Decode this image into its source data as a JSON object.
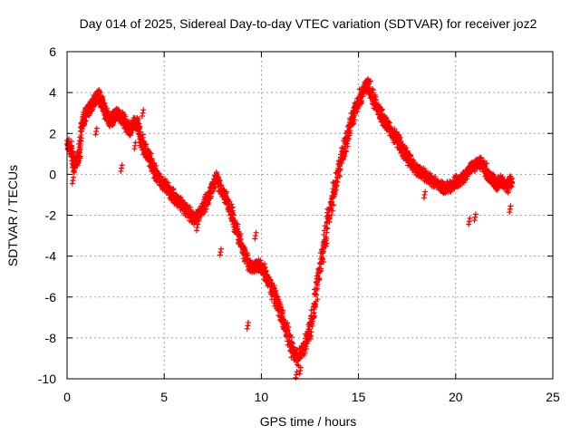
{
  "chart_data": {
    "type": "scatter",
    "title": "Day 014 of 2025, Sidereal Day-to-day VTEC variation (SDTVAR) for receiver joz2",
    "xlabel": "GPS time / hours",
    "ylabel": "SDTVAR / TECUs",
    "xlim": [
      0,
      25
    ],
    "ylim": [
      -10,
      6
    ],
    "xticks": [
      0,
      5,
      10,
      15,
      20,
      25
    ],
    "yticks": [
      -10,
      -8,
      -6,
      -4,
      -2,
      0,
      2,
      4,
      6
    ],
    "xtick_labels": [
      "0",
      "5",
      "10",
      "15",
      "20",
      "25"
    ],
    "ytick_labels": [
      "-10",
      "-8",
      "-6",
      "-4",
      "-2",
      "0",
      "2",
      "4",
      "6"
    ],
    "grid": true,
    "marker": "+",
    "series": [
      {
        "name": "SDTVAR",
        "color": "#ff0000",
        "note": "dense point cloud; values traced approximately along the plotted envelope",
        "x": [
          0.0,
          0.2,
          0.4,
          0.6,
          0.8,
          1.0,
          1.2,
          1.4,
          1.6,
          1.8,
          2.0,
          2.2,
          2.4,
          2.6,
          2.8,
          3.0,
          3.2,
          3.4,
          3.6,
          3.8,
          4.0,
          4.2,
          4.4,
          4.6,
          4.8,
          5.0,
          5.3,
          5.6,
          5.9,
          6.2,
          6.5,
          6.8,
          7.1,
          7.4,
          7.7,
          8.0,
          8.3,
          8.6,
          8.9,
          9.2,
          9.5,
          9.8,
          10.1,
          10.4,
          10.7,
          11.0,
          11.3,
          11.6,
          11.9,
          12.2,
          12.5,
          12.8,
          13.1,
          13.4,
          13.7,
          14.0,
          14.3,
          14.6,
          14.9,
          15.2,
          15.5,
          15.8,
          16.1,
          16.4,
          16.7,
          17.0,
          17.3,
          17.6,
          17.9,
          18.2,
          18.5,
          18.8,
          19.1,
          19.4,
          19.7,
          20.0,
          20.3,
          20.6,
          20.9,
          21.2,
          21.5,
          21.8,
          22.1,
          22.4,
          22.7,
          22.9
        ],
        "y": [
          1.5,
          1.2,
          0.4,
          0.9,
          2.6,
          3.0,
          3.3,
          3.6,
          3.9,
          3.5,
          3.0,
          2.6,
          2.8,
          3.0,
          2.8,
          2.5,
          2.2,
          2.4,
          2.6,
          1.8,
          1.2,
          0.9,
          0.4,
          0.0,
          -0.3,
          -0.5,
          -0.9,
          -1.2,
          -1.5,
          -1.8,
          -2.2,
          -2.0,
          -1.5,
          -0.8,
          -0.2,
          -0.8,
          -1.5,
          -2.4,
          -3.2,
          -4.0,
          -4.6,
          -4.4,
          -4.7,
          -5.3,
          -6.0,
          -6.8,
          -7.6,
          -8.6,
          -9.0,
          -8.5,
          -7.6,
          -6.0,
          -4.2,
          -2.4,
          -1.0,
          0.3,
          1.4,
          2.5,
          3.4,
          4.0,
          4.4,
          3.6,
          3.0,
          2.5,
          2.1,
          1.7,
          1.2,
          0.7,
          0.3,
          0.1,
          -0.1,
          -0.3,
          -0.5,
          -0.7,
          -0.6,
          -0.4,
          -0.2,
          0.1,
          0.4,
          0.6,
          0.3,
          -0.2,
          -0.5,
          -0.3,
          -0.6,
          -0.2
        ],
        "x_extra": [
          0.3,
          1.5,
          2.8,
          3.5,
          3.9,
          6.7,
          7.9,
          9.3,
          9.7,
          11.8,
          12.0,
          18.4,
          20.7,
          21.0,
          22.8
        ],
        "y_extra": [
          -0.3,
          2.1,
          0.3,
          1.4,
          3.0,
          -2.6,
          -3.8,
          -7.4,
          -3.0,
          -9.8,
          -9.6,
          -1.0,
          -2.3,
          -2.1,
          -1.7
        ]
      }
    ]
  }
}
